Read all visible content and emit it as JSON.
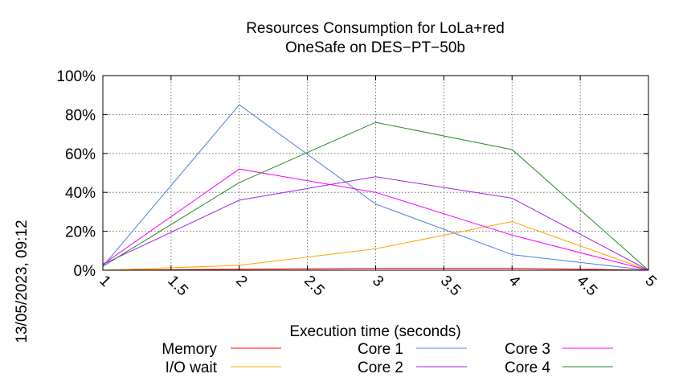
{
  "chart_data": {
    "type": "line",
    "title": [
      "Resources Consumption for LoLa+red",
      "OneSafe on DES−PT−50b"
    ],
    "xlabel": "Execution time (seconds)",
    "ylabel": "",
    "side_label": "13/05/2023, 09:12",
    "xlim": [
      1,
      5
    ],
    "ylim": [
      0,
      100
    ],
    "x_ticks": [
      "1",
      "1.5",
      "2",
      "2.5",
      "3",
      "3.5",
      "4",
      "4.5",
      "5"
    ],
    "y_ticks": [
      "0%",
      "20%",
      "40%",
      "60%",
      "80%",
      "100%"
    ],
    "grid": true,
    "legend_placement": "bottom",
    "x": [
      1,
      2,
      3,
      4,
      5
    ],
    "series": [
      {
        "name": "Memory",
        "color": "#ff0000",
        "values": [
          0,
          0.5,
          1,
          1,
          0
        ]
      },
      {
        "name": "I/O wait",
        "color": "#ffa500",
        "values": [
          0,
          2.5,
          11,
          25,
          0
        ]
      },
      {
        "name": "Core 1",
        "color": "#4f7fdd",
        "values": [
          2,
          85,
          34,
          8,
          0
        ]
      },
      {
        "name": "Core 2",
        "color": "#a020f0",
        "values": [
          3,
          36,
          48,
          37,
          0
        ]
      },
      {
        "name": "Core 3",
        "color": "#ff00ff",
        "values": [
          3,
          52,
          40,
          18,
          0
        ]
      },
      {
        "name": "Core 4",
        "color": "#228b22",
        "values": [
          2,
          45,
          76,
          62,
          0
        ]
      }
    ]
  }
}
